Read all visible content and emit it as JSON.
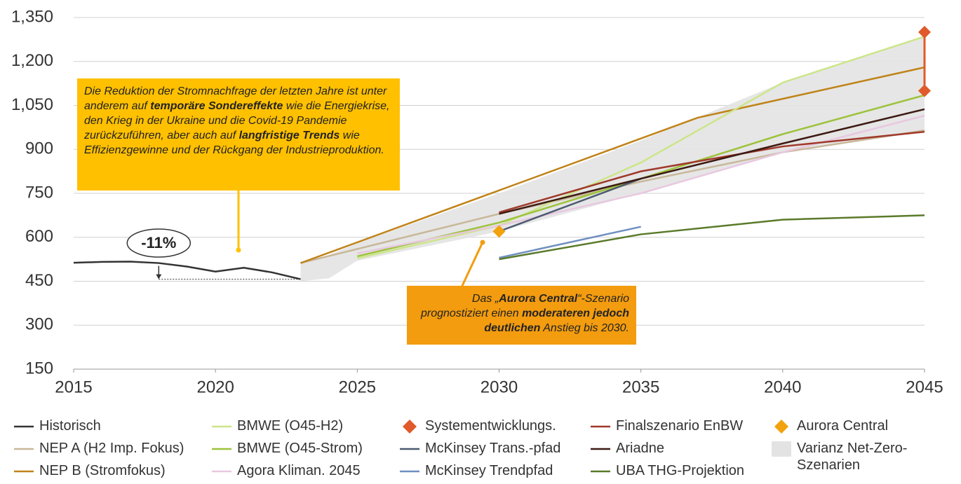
{
  "chart_data": {
    "type": "line",
    "xlim": [
      2015,
      2045
    ],
    "xticks": [
      2015,
      2020,
      2025,
      2030,
      2035,
      2040,
      2045
    ],
    "ylim": [
      150,
      1350
    ],
    "yticks": [
      150,
      300,
      450,
      600,
      750,
      900,
      {
        "value": 1050,
        "label": "1,050"
      },
      {
        "value": 1200,
        "label": "1,200"
      },
      {
        "value": 1350,
        "label": "1,350"
      }
    ],
    "grid": true,
    "series": [
      {
        "name": "Historisch",
        "type": "line",
        "color": "#333333",
        "x": [
          2015,
          2016,
          2017,
          2018,
          2019,
          2020,
          2021,
          2022,
          2023
        ],
        "values": [
          513,
          516,
          517,
          512,
          500,
          483,
          496,
          480,
          457
        ]
      },
      {
        "name": "NEP A (H2 Imp. Fokus)",
        "type": "line",
        "color": "#c8b89a",
        "x": [
          2023,
          2030,
          2035,
          2040,
          2045
        ],
        "values": [
          512,
          680,
          790,
          890,
          965
        ]
      },
      {
        "name": "NEP B (Stromfokus)",
        "type": "line",
        "color": "#c0841a",
        "x": [
          2023,
          2037,
          2045
        ],
        "values": [
          512,
          1008,
          1180
        ]
      },
      {
        "name": "BMWE (O45-H2)",
        "type": "line",
        "color": "#cde58a",
        "x": [
          2025,
          2030,
          2035,
          2040,
          2045
        ],
        "values": [
          528,
          640,
          855,
          1128,
          1285
        ]
      },
      {
        "name": "BMWE (O45-Strom)",
        "type": "line",
        "color": "#9dc33c",
        "x": [
          2025,
          2030,
          2035,
          2040,
          2045
        ],
        "values": [
          535,
          650,
          800,
          952,
          1085
        ]
      },
      {
        "name": "Agora Kliman. 2045",
        "type": "line",
        "color": "#e8c8e0",
        "x": [
          2025,
          2030,
          2035,
          2040,
          2045
        ],
        "values": [
          545,
          640,
          750,
          890,
          1015
        ]
      },
      {
        "name": "Systementwicklungs.",
        "type": "scatter",
        "color": "#e05a2b",
        "x": [
          2045,
          2045
        ],
        "values": [
          1300,
          1100
        ]
      },
      {
        "name": "McKinsey Trans.-pfad",
        "type": "line",
        "color": "#4a5a70",
        "x": [
          2030,
          2035
        ],
        "values": [
          620,
          800
        ]
      },
      {
        "name": "McKinsey Trendpfad",
        "type": "line",
        "color": "#6f8fc0",
        "x": [
          2030,
          2035
        ],
        "values": [
          530,
          636
        ]
      },
      {
        "name": "Finalszenario EnBW",
        "type": "line",
        "color": "#a0392a",
        "x": [
          2030,
          2035,
          2040,
          2045
        ],
        "values": [
          685,
          825,
          910,
          960
        ]
      },
      {
        "name": "Ariadne",
        "type": "line",
        "color": "#3d1a12",
        "x": [
          2030,
          2035,
          2040,
          2045
        ],
        "values": [
          680,
          800,
          920,
          1037
        ]
      },
      {
        "name": "UBA THG-Projektion",
        "type": "line",
        "color": "#5a7a2a",
        "x": [
          2030,
          2035,
          2040,
          2045
        ],
        "values": [
          525,
          610,
          660,
          675
        ]
      },
      {
        "name": "Aurora Central",
        "type": "scatter",
        "color": "#f2a20c",
        "x": [
          2030
        ],
        "values": [
          620
        ]
      },
      {
        "name": "Varianz Net-Zero-Szenarien",
        "type": "area",
        "color": "#e3e3e3",
        "x": [
          2023,
          2024,
          2025,
          2030,
          2035,
          2040,
          2045
        ],
        "lower": [
          450,
          460,
          520,
          620,
          750,
          890,
          960
        ],
        "upper": [
          512,
          540,
          580,
          750,
          930,
          1128,
          1285
        ]
      }
    ],
    "change_label": "-11%",
    "annotations": [
      {
        "color": "#ffc000",
        "parts": [
          {
            "text": "Die Reduktion der Stromnachfrage der letzten Jahre ist unter anderem auf "
          },
          {
            "text": "temporäre Sondereffekte",
            "weight": "bold"
          },
          {
            "text": " wie die Energiekrise, den Krieg in der Ukraine und die Covid-19 Pandemie zurückzuführen, aber auch auf "
          },
          {
            "text": "langfristige Trends",
            "weight": "bold"
          },
          {
            "text": " wie Effizienzgewinne und der Rückgang der Industrieproduktion."
          }
        ]
      },
      {
        "color": "#f39c0f",
        "parts": [
          {
            "text": "Das „"
          },
          {
            "text": "Aurora Central",
            "weight": "bold"
          },
          {
            "text": "“-Szenario prognostiziert einen "
          },
          {
            "text": "moderateren jedoch deutlichen",
            "weight": "bold"
          },
          {
            "text": " Anstieg bis 2030."
          }
        ]
      }
    ]
  }
}
